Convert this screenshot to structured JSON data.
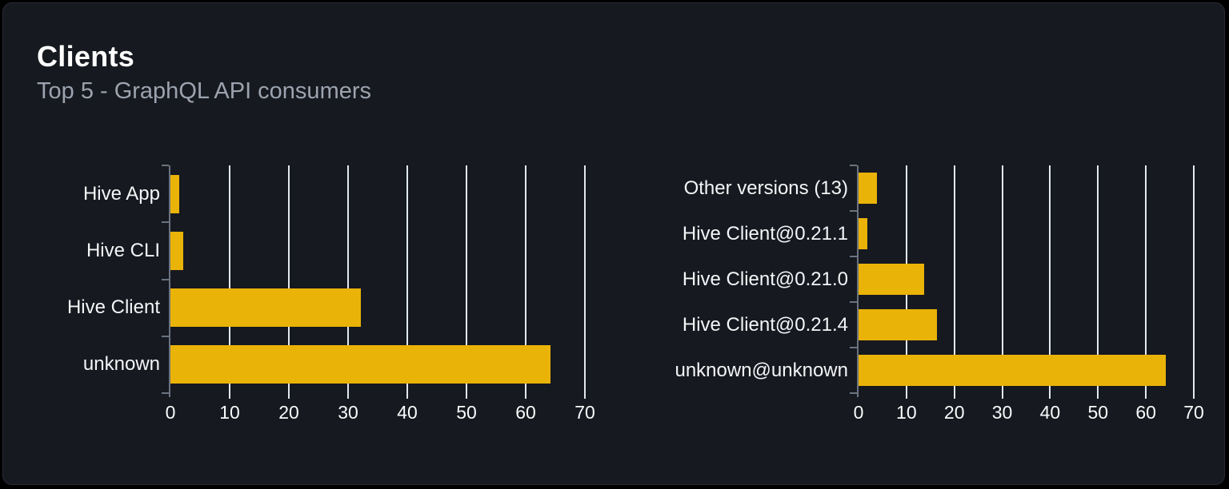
{
  "card": {
    "title": "Clients",
    "subtitle": "Top 5 - GraphQL API consumers"
  },
  "colors": {
    "background": "#000000",
    "card_background": "#16191f",
    "card_border": "#272b33",
    "title": "#ffffff",
    "subtitle": "#9ca3af",
    "bar": "#eab308",
    "grid": "#e2e8f0",
    "axis": "#6b7280",
    "category_label": "#f4f5f7",
    "tick_label": "#f9fafb"
  },
  "chart_data": [
    {
      "type": "bar",
      "orientation": "horizontal",
      "categories": [
        "Hive App",
        "Hive CLI",
        "Hive Client",
        "unknown"
      ],
      "values": [
        1.5,
        2.2,
        32.1,
        64.2
      ],
      "xlim": [
        0,
        70
      ],
      "xticks": [
        0,
        10,
        20,
        30,
        40,
        50,
        60,
        70
      ],
      "grid": true,
      "legend": false,
      "title": "",
      "xlabel": "",
      "ylabel": ""
    },
    {
      "type": "bar",
      "orientation": "horizontal",
      "categories": [
        "Other versions (13)",
        "Hive Client@0.21.1",
        "Hive Client@0.21.0",
        "Hive Client@0.21.4",
        "unknown@unknown"
      ],
      "values": [
        3.9,
        1.9,
        13.7,
        16.4,
        64.2
      ],
      "xlim": [
        0,
        70
      ],
      "xticks": [
        0,
        10,
        20,
        30,
        40,
        50,
        60,
        70
      ],
      "grid": true,
      "legend": false,
      "title": "",
      "xlabel": "",
      "ylabel": ""
    }
  ]
}
